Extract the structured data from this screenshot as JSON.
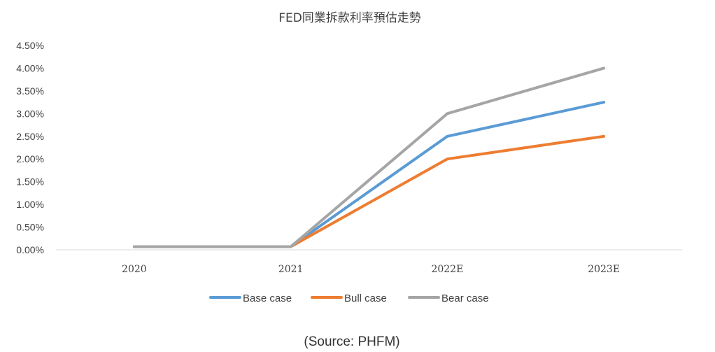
{
  "chart_data": {
    "type": "line",
    "title": "FED同業拆款利率預估走勢",
    "categories": [
      "2020",
      "2021",
      "2022E",
      "2023E"
    ],
    "y_tick_labels": [
      "0.00%",
      "0.50%",
      "1.00%",
      "1.50%",
      "2.00%",
      "2.50%",
      "3.00%",
      "3.50%",
      "4.00%",
      "4.50%"
    ],
    "ylim": [
      0,
      4.5
    ],
    "y_unit": "%",
    "grid": false,
    "legend_position": "bottom",
    "series": [
      {
        "name": "Base case",
        "color": "#5B9BD5",
        "values": [
          0.07,
          0.07,
          2.5,
          3.25
        ]
      },
      {
        "name": "Bull case",
        "color": "#ED7D31",
        "values": [
          0.07,
          0.07,
          2.0,
          2.5
        ]
      },
      {
        "name": "Bear case",
        "color": "#A5A5A5",
        "values": [
          0.07,
          0.07,
          3.0,
          4.0
        ]
      }
    ],
    "source": "(Source: PHFM)"
  }
}
